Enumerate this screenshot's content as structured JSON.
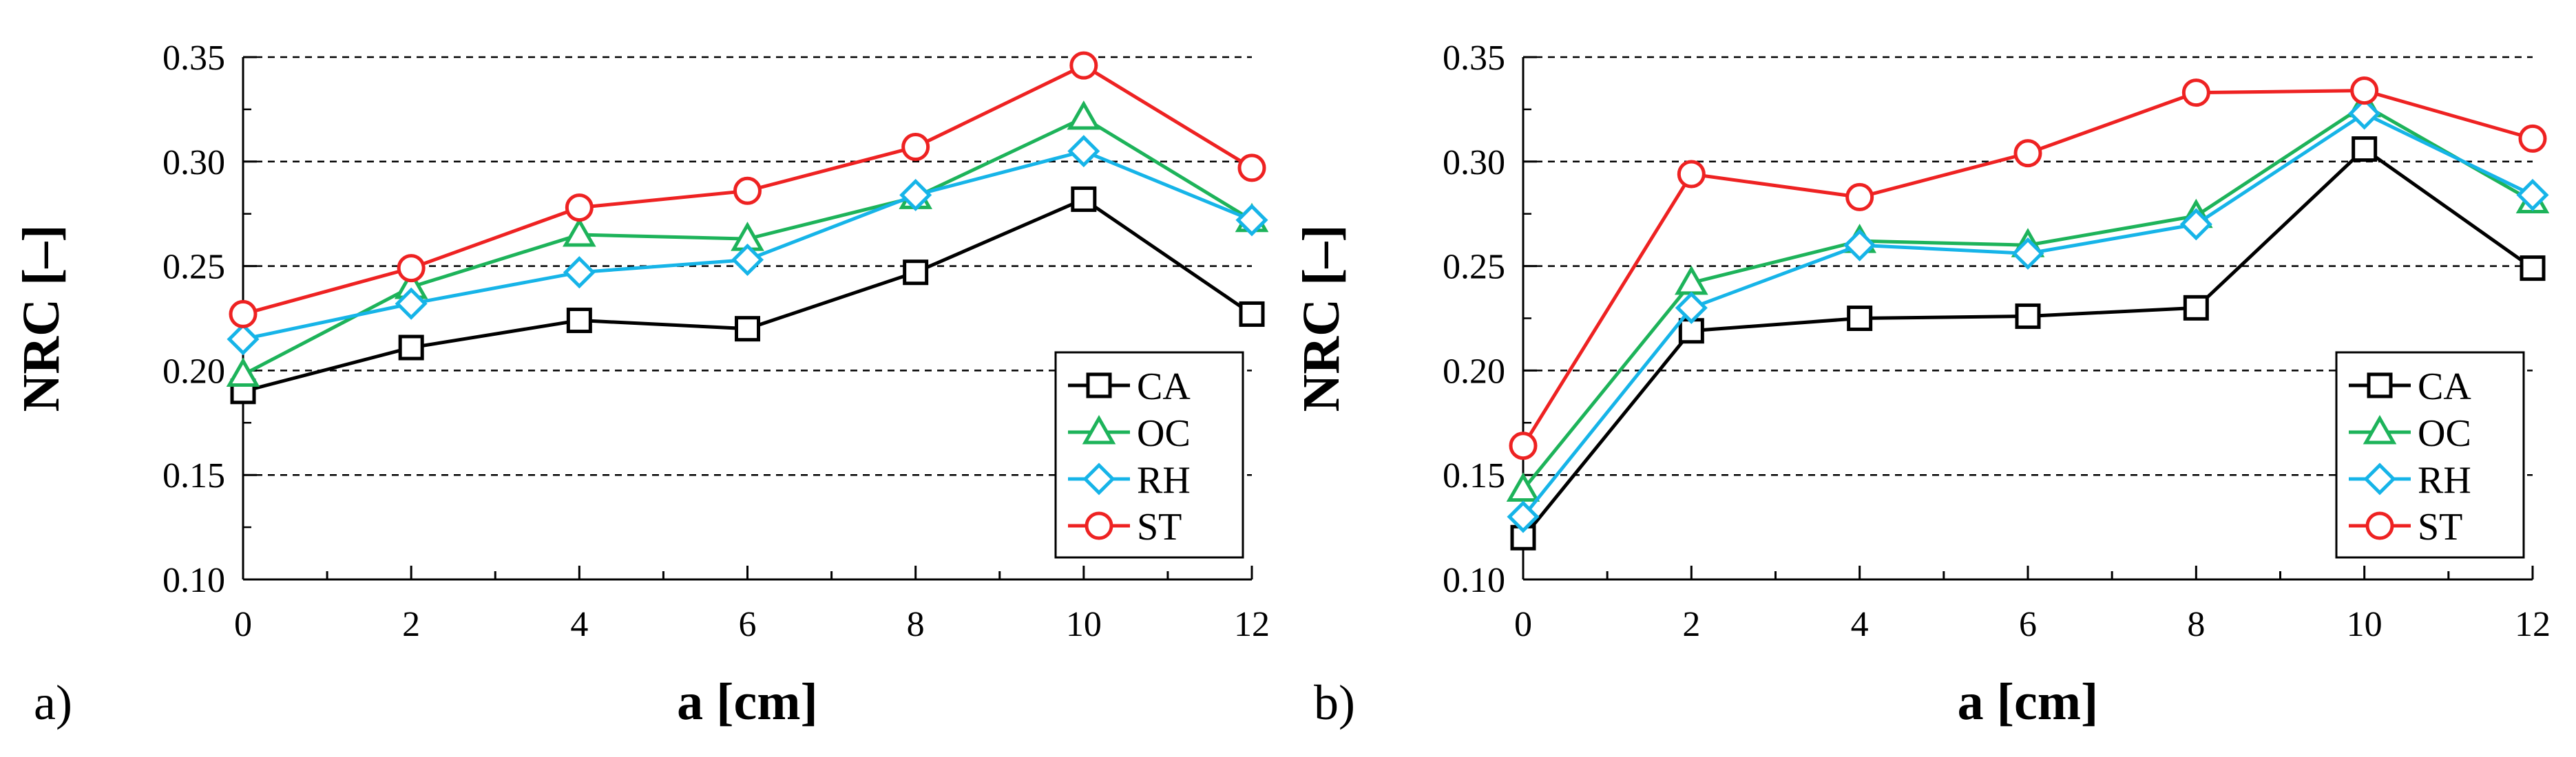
{
  "chart_data": [
    {
      "type": "line",
      "panel_label": "a)",
      "xlabel": "a [cm]",
      "ylabel": "NRC [–]",
      "x": [
        0,
        2,
        4,
        6,
        8,
        10,
        12
      ],
      "xticks": [
        "0",
        "2",
        "4",
        "6",
        "8",
        "10",
        "12"
      ],
      "ylim": [
        0.1,
        0.35
      ],
      "yticks": [
        "0.10",
        "0.15",
        "0.20",
        "0.25",
        "0.30",
        "0.35"
      ],
      "grid": "dashed horizontal",
      "legend_position": "bottom-right",
      "series": [
        {
          "name": "CA",
          "color": "#000000",
          "marker": "square",
          "values": [
            0.19,
            0.211,
            0.224,
            0.22,
            0.247,
            0.282,
            0.227
          ]
        },
        {
          "name": "OC",
          "color": "#1db35a",
          "marker": "triangle",
          "values": [
            0.198,
            0.24,
            0.265,
            0.263,
            0.283,
            0.321,
            0.272
          ]
        },
        {
          "name": "RH",
          "color": "#16b4e8",
          "marker": "diamond",
          "values": [
            0.215,
            0.232,
            0.247,
            0.253,
            0.284,
            0.305,
            0.272
          ]
        },
        {
          "name": "ST",
          "color": "#ee2222",
          "marker": "circle",
          "values": [
            0.227,
            0.249,
            0.278,
            0.286,
            0.307,
            0.346,
            0.297
          ]
        }
      ]
    },
    {
      "type": "line",
      "panel_label": "b)",
      "xlabel": "a [cm]",
      "ylabel": "NRC [–]",
      "x": [
        0,
        2,
        4,
        6,
        8,
        10,
        12
      ],
      "xticks": [
        "0",
        "2",
        "4",
        "6",
        "8",
        "10",
        "12"
      ],
      "ylim": [
        0.1,
        0.35
      ],
      "yticks": [
        "0.10",
        "0.15",
        "0.20",
        "0.25",
        "0.30",
        "0.35"
      ],
      "grid": "dashed horizontal",
      "legend_position": "bottom-right",
      "series": [
        {
          "name": "CA",
          "color": "#000000",
          "marker": "square",
          "values": [
            0.12,
            0.219,
            0.225,
            0.226,
            0.23,
            0.306,
            0.249
          ]
        },
        {
          "name": "OC",
          "color": "#1db35a",
          "marker": "triangle",
          "values": [
            0.143,
            0.242,
            0.262,
            0.26,
            0.274,
            0.327,
            0.281
          ]
        },
        {
          "name": "RH",
          "color": "#16b4e8",
          "marker": "diamond",
          "values": [
            0.13,
            0.23,
            0.26,
            0.256,
            0.27,
            0.323,
            0.284
          ]
        },
        {
          "name": "ST",
          "color": "#ee2222",
          "marker": "circle",
          "values": [
            0.164,
            0.294,
            0.283,
            0.304,
            0.333,
            0.334,
            0.311
          ]
        }
      ]
    }
  ]
}
